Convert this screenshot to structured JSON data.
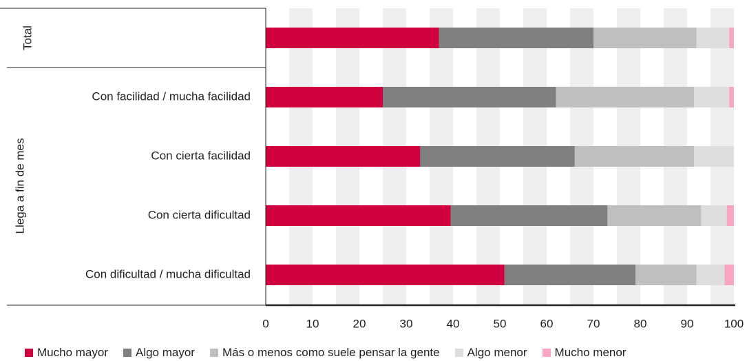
{
  "chart_data": {
    "type": "bar",
    "orientation": "horizontal",
    "stacked": true,
    "title": "",
    "xlabel": "",
    "ylabel": "",
    "xlim": [
      0,
      100
    ],
    "x_ticks": [
      "0",
      "10",
      "20",
      "30",
      "40",
      "50",
      "60",
      "70",
      "80",
      "90",
      "100"
    ],
    "groups": [
      {
        "label": "Total",
        "categories": [
          "Total"
        ]
      },
      {
        "label": "Llega a fin de mes",
        "categories": [
          "Con facilidad / mucha facilidad",
          "Con cierta facilidad",
          "Con cierta dificultad",
          "Con dificultad / mucha dificultad"
        ]
      }
    ],
    "categories": [
      "Total",
      "Con facilidad / mucha facilidad",
      "Con cierta facilidad",
      "Con cierta dificultad",
      "Con dificultad / mucha dificultad"
    ],
    "series": [
      {
        "name": "Mucho mayor",
        "color": "#d0003f",
        "values": [
          37,
          25,
          33,
          39.5,
          51
        ]
      },
      {
        "name": "Algo mayor",
        "color": "#7f7f7f",
        "values": [
          33,
          37,
          33,
          33.5,
          28
        ]
      },
      {
        "name": "Más o menos como suele pensar la gente",
        "color": "#bfbfbf",
        "values": [
          22,
          29.5,
          25.5,
          20,
          13
        ]
      },
      {
        "name": "Algo menor",
        "color": "#dedede",
        "values": [
          7,
          7.5,
          8.5,
          5.5,
          6
        ]
      },
      {
        "name": "Mucho menor",
        "color": "#f7a8c0",
        "values": [
          1,
          1,
          0,
          1.5,
          2
        ]
      }
    ],
    "grid": "alternating vertical bands",
    "legend_position": "bottom"
  }
}
